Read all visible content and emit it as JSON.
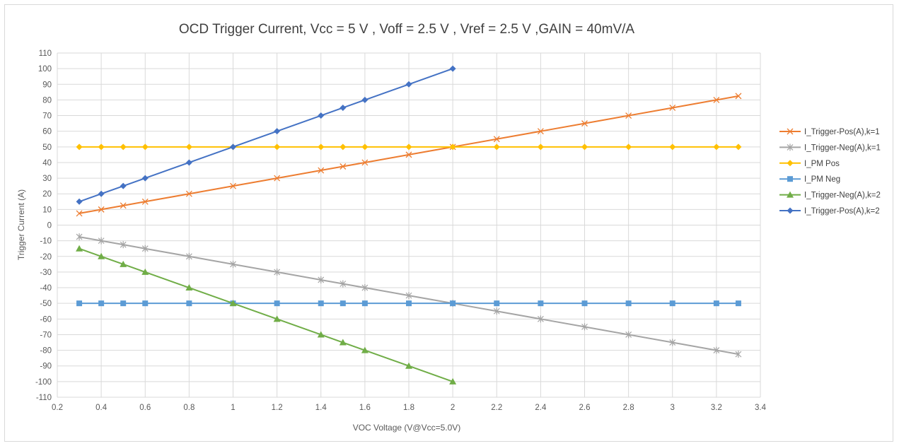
{
  "chart_data": {
    "type": "line",
    "title": "OCD Trigger Current, Vcc = 5 V , Voff = 2.5 V , Vref = 2.5 V ,GAIN = 40mV/A",
    "xlabel": "VOC Voltage (V@Vcc=5.0V)",
    "ylabel": "Trigger Current (A)",
    "xlim": [
      0.2,
      3.4
    ],
    "ylim": [
      -110,
      110
    ],
    "x_ticks": [
      0.2,
      0.4,
      0.6,
      0.8,
      1,
      1.2,
      1.4,
      1.6,
      1.8,
      2,
      2.2,
      2.4,
      2.6,
      2.8,
      3,
      3.2,
      3.4
    ],
    "y_ticks": [
      -110,
      -100,
      -90,
      -80,
      -70,
      -60,
      -50,
      -40,
      -30,
      -20,
      -10,
      0,
      10,
      20,
      30,
      40,
      50,
      60,
      70,
      80,
      90,
      100,
      110
    ],
    "grid": true,
    "legend_position": "right",
    "series": [
      {
        "name": "I_Trigger-Pos(A),k=1",
        "color": "#ed7d31",
        "marker": "x",
        "x": [
          0.3,
          0.4,
          0.5,
          0.6,
          0.8,
          1,
          1.2,
          1.4,
          1.5,
          1.6,
          1.8,
          2,
          2.2,
          2.4,
          2.6,
          2.8,
          3,
          3.2,
          3.3
        ],
        "values": [
          7.5,
          10,
          12.5,
          15,
          20,
          25,
          30,
          35,
          37.5,
          40,
          45,
          50,
          55,
          60,
          65,
          70,
          75,
          80,
          82.5
        ]
      },
      {
        "name": "I_Trigger-Neg(A),k=1",
        "color": "#a5a5a5",
        "marker": "star",
        "x": [
          0.3,
          0.4,
          0.5,
          0.6,
          0.8,
          1,
          1.2,
          1.4,
          1.5,
          1.6,
          1.8,
          2,
          2.2,
          2.4,
          2.6,
          2.8,
          3,
          3.2,
          3.3
        ],
        "values": [
          -7.5,
          -10,
          -12.5,
          -15,
          -20,
          -25,
          -30,
          -35,
          -37.5,
          -40,
          -45,
          -50,
          -55,
          -60,
          -65,
          -70,
          -75,
          -80,
          -82.5
        ]
      },
      {
        "name": "I_PM Pos",
        "color": "#ffc000",
        "marker": "diamond",
        "x": [
          0.3,
          0.4,
          0.5,
          0.6,
          0.8,
          1,
          1.2,
          1.4,
          1.5,
          1.6,
          1.8,
          2,
          2.2,
          2.4,
          2.6,
          2.8,
          3,
          3.2,
          3.3
        ],
        "values": [
          50,
          50,
          50,
          50,
          50,
          50,
          50,
          50,
          50,
          50,
          50,
          50,
          50,
          50,
          50,
          50,
          50,
          50,
          50
        ]
      },
      {
        "name": "I_PM Neg",
        "color": "#5b9bd5",
        "marker": "square",
        "x": [
          0.3,
          0.4,
          0.5,
          0.6,
          0.8,
          1,
          1.2,
          1.4,
          1.5,
          1.6,
          1.8,
          2,
          2.2,
          2.4,
          2.6,
          2.8,
          3,
          3.2,
          3.3
        ],
        "values": [
          -50,
          -50,
          -50,
          -50,
          -50,
          -50,
          -50,
          -50,
          -50,
          -50,
          -50,
          -50,
          -50,
          -50,
          -50,
          -50,
          -50,
          -50,
          -50
        ]
      },
      {
        "name": "I_Trigger-Neg(A),k=2",
        "color": "#70ad47",
        "marker": "triangle",
        "x": [
          0.3,
          0.4,
          0.5,
          0.6,
          0.8,
          1,
          1.2,
          1.4,
          1.5,
          1.6,
          1.8,
          2
        ],
        "values": [
          -15,
          -20,
          -25,
          -30,
          -40,
          -50,
          -60,
          -70,
          -75,
          -80,
          -90,
          -100
        ]
      },
      {
        "name": "I_Trigger-Pos(A),k=2",
        "color": "#4472c4",
        "marker": "diamond",
        "x": [
          0.3,
          0.4,
          0.5,
          0.6,
          0.8,
          1,
          1.2,
          1.4,
          1.5,
          1.6,
          1.8,
          2
        ],
        "values": [
          15,
          20,
          25,
          30,
          40,
          50,
          60,
          70,
          75,
          80,
          90,
          100
        ]
      }
    ]
  }
}
